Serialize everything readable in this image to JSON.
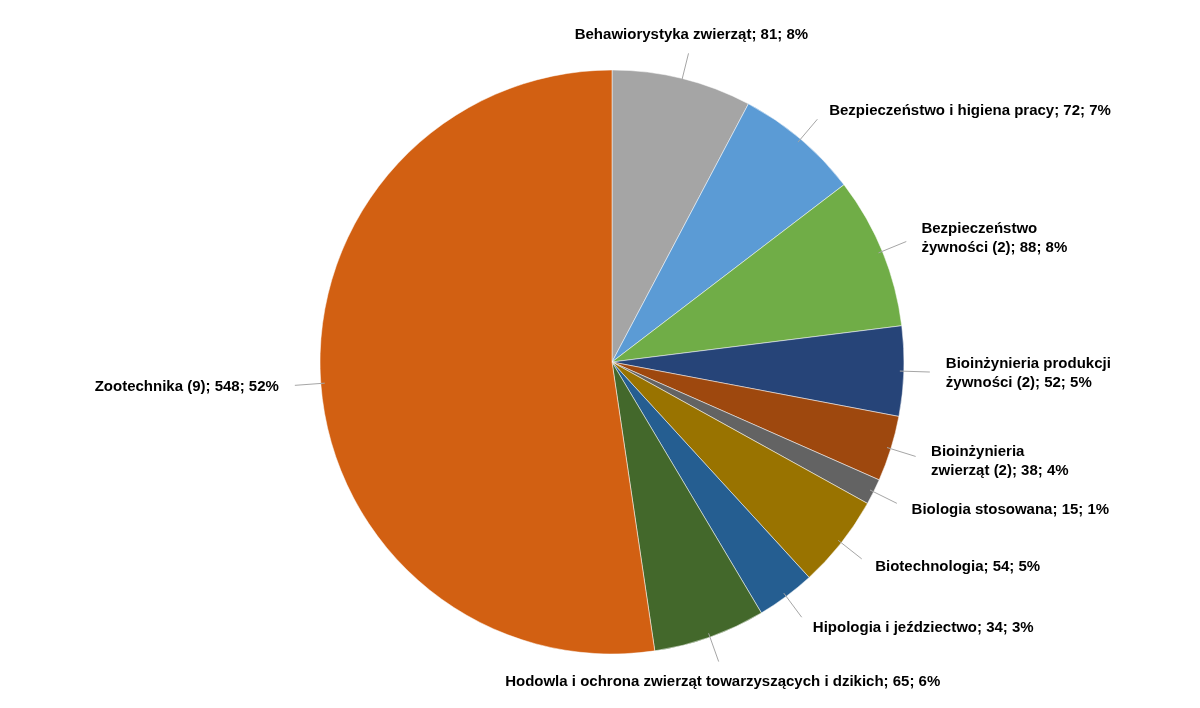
{
  "chart_data": {
    "type": "pie",
    "categories": [
      "Behawiorystyka zwierząt",
      "Bezpieczeństwo i higiena pracy",
      "Bezpieczeństwo żywności (2)",
      "Bioinżynieria produkcji żywności (2)",
      "Bioinżynieria zwierząt (2)",
      "Biologia stosowana",
      "Biotechnologia",
      "Hipologia i jeździectwo",
      "Hodowla i ochrona zwierząt towarzyszących i dzikich",
      "Zootechnika (9)"
    ],
    "values": [
      81,
      72,
      88,
      52,
      38,
      15,
      54,
      34,
      65,
      548
    ],
    "value_labels": [
      "81; 8%",
      "72; 7%",
      "88; 8%",
      "52; 5%",
      "38; 4%",
      "15; 1%",
      "54; 5%",
      "34; 3%",
      "65; 6%",
      "548; 52%"
    ],
    "colors": [
      "#a5a5a5",
      "#5b9bd5",
      "#70ad47",
      "#264478",
      "#9e480e",
      "#636363",
      "#997300",
      "#255e91",
      "#43682b",
      "#d26012"
    ]
  }
}
